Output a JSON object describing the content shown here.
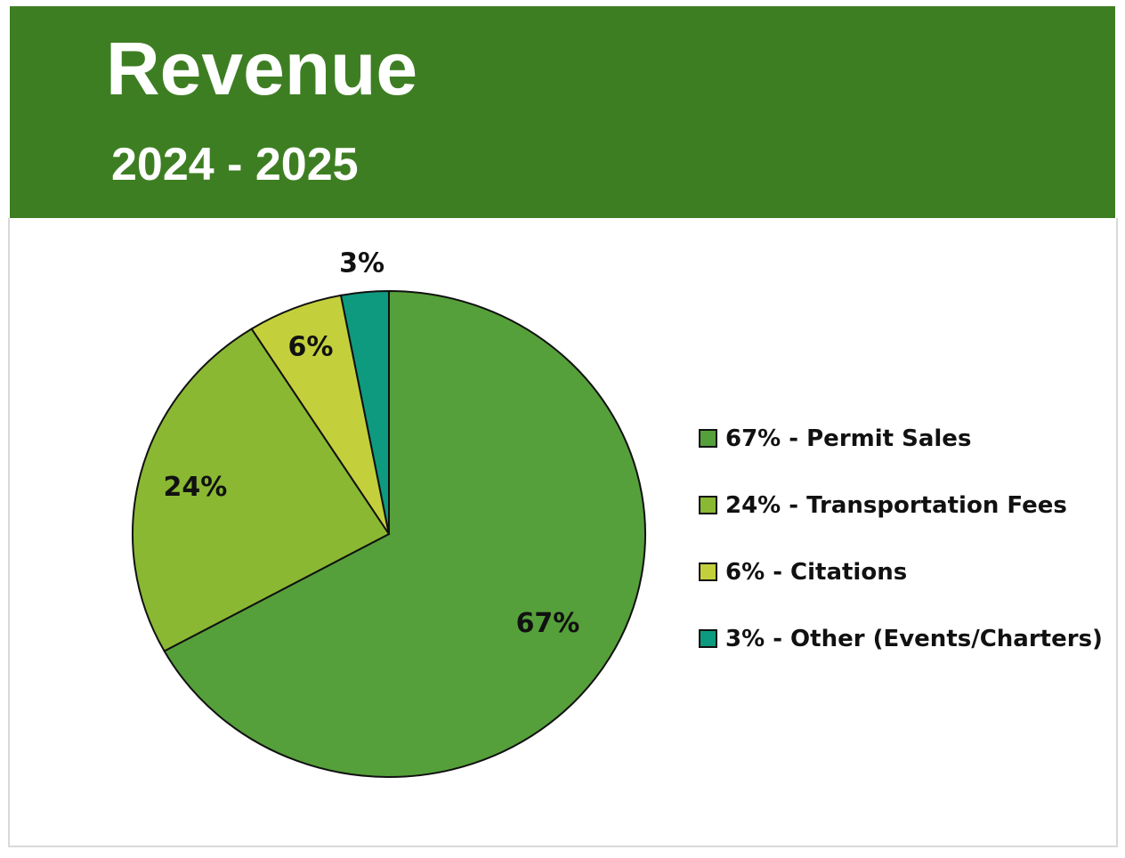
{
  "header": {
    "title": "Revenue",
    "subtitle": "2024 - 2025"
  },
  "chart_data": {
    "type": "pie",
    "title": "Revenue",
    "subtitle": "2024 - 2025",
    "legend_position": "right",
    "slices": [
      {
        "name": "Permit Sales",
        "value": 67,
        "label": "67%",
        "legend": "67% - Permit Sales",
        "color": "#55a03a"
      },
      {
        "name": "Transportation Fees",
        "value": 24,
        "label": "24%",
        "legend": "24% - Transportation Fees",
        "color": "#8ab833"
      },
      {
        "name": "Citations",
        "value": 6,
        "label": "6%",
        "legend": "6% - Citations",
        "color": "#c3d03c"
      },
      {
        "name": "Other (Events/Charters)",
        "value": 3,
        "label": "3%",
        "legend": "3% - Other (Events/Charters)",
        "color": "#0e9a7e"
      }
    ]
  }
}
